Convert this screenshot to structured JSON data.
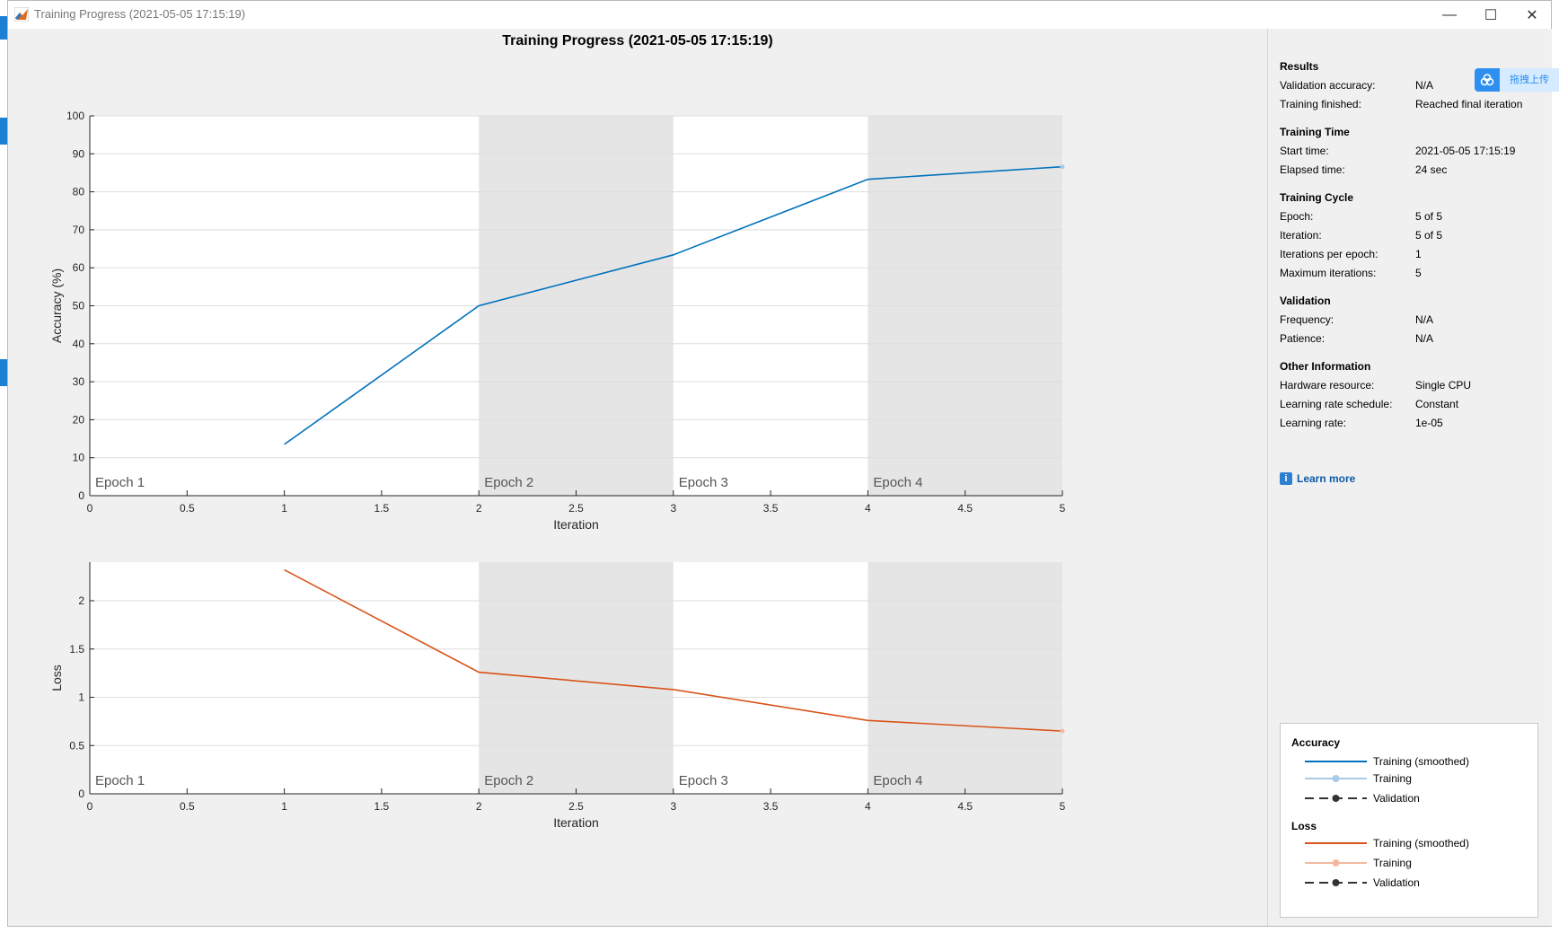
{
  "window": {
    "title": "Training Progress (2021-05-05 17:15:19)",
    "minimize_glyph": "—",
    "maximize_glyph": "☐",
    "close_glyph": "✕"
  },
  "main": {
    "title": "Training Progress (2021-05-05 17:15:19)"
  },
  "chart_data": [
    {
      "type": "line",
      "name": "accuracy-plot",
      "xlabel": "Iteration",
      "ylabel": "Accuracy (%)",
      "xlim": [
        0,
        5
      ],
      "ylim": [
        0,
        100
      ],
      "xticks": [
        "0",
        "0.5",
        "1",
        "1.5",
        "2",
        "2.5",
        "3",
        "3.5",
        "4",
        "4.5",
        "5"
      ],
      "yticks": [
        "0",
        "10",
        "20",
        "30",
        "40",
        "50",
        "60",
        "70",
        "80",
        "90",
        "100"
      ],
      "grid": true,
      "epoch_labels": [
        "Epoch 1",
        "Epoch 2",
        "Epoch 3",
        "Epoch 4"
      ],
      "series": [
        {
          "color": "#0072bd",
          "x": [
            1,
            2,
            3,
            4,
            5
          ],
          "y": [
            13.5,
            50,
            63.4,
            83.3,
            86.6
          ]
        }
      ]
    },
    {
      "type": "line",
      "name": "loss-plot",
      "xlabel": "Iteration",
      "ylabel": "Loss",
      "xlim": [
        0,
        5
      ],
      "ylim": [
        0,
        2.4
      ],
      "xticks": [
        "0",
        "0.5",
        "1",
        "1.5",
        "2",
        "2.5",
        "3",
        "3.5",
        "4",
        "4.5",
        "5"
      ],
      "yticks": [
        "0",
        "0.5",
        "1",
        "1.5",
        "2"
      ],
      "grid": true,
      "epoch_labels": [
        "Epoch 1",
        "Epoch 2",
        "Epoch 3",
        "Epoch 4"
      ],
      "series": [
        {
          "color": "#d95319",
          "x": [
            1,
            2,
            3,
            4,
            5
          ],
          "y": [
            2.32,
            1.26,
            1.08,
            0.76,
            0.65
          ]
        }
      ]
    }
  ],
  "info_panel": [
    {
      "title": "Results",
      "rows": [
        {
          "label": "Validation accuracy:",
          "value": "N/A"
        },
        {
          "label": "Training finished:",
          "value": "Reached final iteration"
        }
      ]
    },
    {
      "title": "Training Time",
      "rows": [
        {
          "label": "Start time:",
          "value": "2021-05-05 17:15:19"
        },
        {
          "label": "Elapsed time:",
          "value": "24 sec"
        }
      ]
    },
    {
      "title": "Training Cycle",
      "rows": [
        {
          "label": "Epoch:",
          "value": "5 of 5"
        },
        {
          "label": "Iteration:",
          "value": "5 of 5"
        },
        {
          "label": "Iterations per epoch:",
          "value": "1"
        },
        {
          "label": "Maximum iterations:",
          "value": "5"
        }
      ]
    },
    {
      "title": "Validation",
      "rows": [
        {
          "label": "Frequency:",
          "value": "N/A"
        },
        {
          "label": "Patience:",
          "value": "N/A"
        }
      ]
    },
    {
      "title": "Other Information",
      "rows": [
        {
          "label": "Hardware resource:",
          "value": "Single CPU"
        },
        {
          "label": "Learning rate schedule:",
          "value": "Constant"
        },
        {
          "label": "Learning rate:",
          "value": "1e-05"
        }
      ]
    }
  ],
  "learn_more": {
    "icon": "info-icon",
    "label": "Learn more"
  },
  "legend": {
    "accuracy": {
      "title": "Accuracy",
      "items": [
        {
          "label": "Training (smoothed)",
          "color": "#0072bd",
          "style": "solid"
        },
        {
          "label": "Training",
          "color": "#a9cbe8",
          "style": "solid-marker"
        },
        {
          "label": "Validation",
          "color": "#333333",
          "style": "dashed-marker"
        }
      ]
    },
    "loss": {
      "title": "Loss",
      "items": [
        {
          "label": "Training (smoothed)",
          "color": "#d95319",
          "style": "solid"
        },
        {
          "label": "Training",
          "color": "#f2b9a0",
          "style": "solid-marker"
        },
        {
          "label": "Validation",
          "color": "#333333",
          "style": "dashed-marker"
        }
      ]
    }
  },
  "overlay_widget": {
    "icon": "cloud-icon",
    "label": "拖拽上传"
  }
}
